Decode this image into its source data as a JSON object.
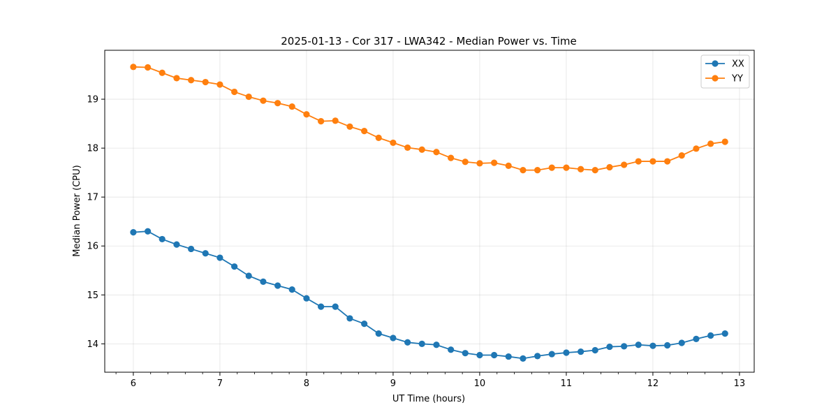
{
  "chart_data": {
    "type": "line",
    "title": "2025-01-13 - Cor 317 - LWA342 - Median Power vs. Time",
    "xlabel": "UT Time (hours)",
    "ylabel": "Median Power (CPU)",
    "xlim": [
      5.67,
      13.17
    ],
    "ylim": [
      13.42,
      20.0
    ],
    "xticks": [
      6,
      7,
      8,
      9,
      10,
      11,
      12,
      13
    ],
    "xtick_labels": [
      "6",
      "7",
      "8",
      "9",
      "10",
      "11",
      "12",
      "13"
    ],
    "yticks": [
      14,
      15,
      16,
      17,
      18,
      19
    ],
    "ytick_labels": [
      "14",
      "15",
      "16",
      "17",
      "18",
      "19"
    ],
    "grid": true,
    "legend_position": "top-right",
    "x": [
      6.0,
      6.167,
      6.333,
      6.5,
      6.667,
      6.833,
      7.0,
      7.167,
      7.333,
      7.5,
      7.667,
      7.833,
      8.0,
      8.167,
      8.333,
      8.5,
      8.667,
      8.833,
      9.0,
      9.167,
      9.333,
      9.5,
      9.667,
      9.833,
      10.0,
      10.167,
      10.333,
      10.5,
      10.667,
      10.833,
      11.0,
      11.167,
      11.333,
      11.5,
      11.667,
      11.833,
      12.0,
      12.167,
      12.333,
      12.5,
      12.667,
      12.833
    ],
    "series": [
      {
        "name": "XX",
        "color": "#1f77b4",
        "values": [
          16.28,
          16.3,
          16.14,
          16.03,
          15.94,
          15.85,
          15.76,
          15.58,
          15.39,
          15.27,
          15.19,
          15.11,
          14.93,
          14.76,
          14.76,
          14.52,
          14.41,
          14.21,
          14.12,
          14.03,
          14.0,
          13.98,
          13.88,
          13.81,
          13.77,
          13.77,
          13.74,
          13.7,
          13.75,
          13.79,
          13.82,
          13.84,
          13.87,
          13.94,
          13.95,
          13.98,
          13.96,
          13.97,
          14.02,
          14.1,
          14.17,
          14.21
        ]
      },
      {
        "name": "YY",
        "color": "#ff7f0e",
        "values": [
          19.66,
          19.65,
          19.54,
          19.43,
          19.39,
          19.35,
          19.3,
          19.15,
          19.05,
          18.97,
          18.92,
          18.85,
          18.69,
          18.55,
          18.56,
          18.44,
          18.35,
          18.21,
          18.11,
          18.01,
          17.97,
          17.92,
          17.8,
          17.72,
          17.69,
          17.7,
          17.64,
          17.55,
          17.55,
          17.6,
          17.6,
          17.57,
          17.55,
          17.61,
          17.66,
          17.73,
          17.73,
          17.73,
          17.85,
          17.99,
          18.09,
          18.13
        ]
      }
    ]
  }
}
